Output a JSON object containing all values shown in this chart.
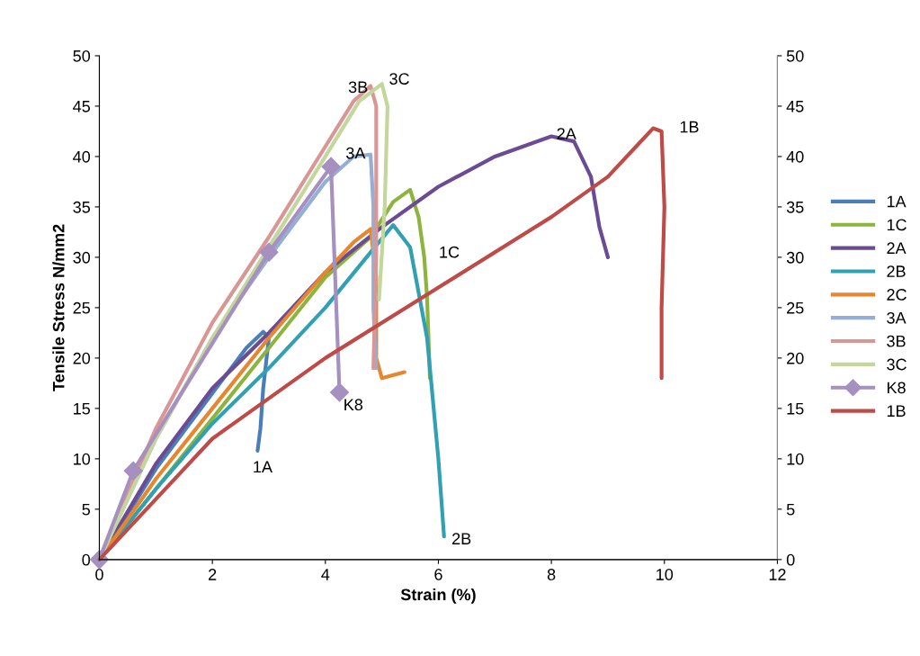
{
  "chart_data": {
    "type": "line",
    "xlabel": "Strain (%)",
    "ylabel": "Tensile Stress N/mm2",
    "xlim": [
      0,
      12
    ],
    "xticks": [
      0,
      2,
      4,
      6,
      8,
      10,
      12
    ],
    "ylim": [
      0,
      50
    ],
    "yticks": [
      0,
      5,
      10,
      15,
      20,
      25,
      30,
      35,
      40,
      45,
      50
    ],
    "y2lim": [
      0,
      50
    ],
    "y2ticks": [
      0,
      5,
      10,
      15,
      20,
      25,
      30,
      35,
      40,
      45,
      50
    ],
    "grid": false,
    "legend": "right",
    "marker": "none",
    "line_style": "solid",
    "series": [
      {
        "name": "1A",
        "color": "#4a7ebb",
        "x": [
          0,
          1,
          2,
          2.6,
          2.9,
          3.0,
          2.9,
          2.85,
          2.8
        ],
        "values": [
          0,
          9,
          16.5,
          21,
          22.6,
          22,
          17,
          13,
          10.8
        ]
      },
      {
        "name": "1C",
        "color": "#8db43e",
        "x": [
          0,
          1,
          2,
          3,
          4,
          4.8,
          5.2,
          5.5,
          5.65,
          5.75,
          5.8,
          5.85
        ],
        "values": [
          0,
          7,
          14,
          21,
          28,
          32,
          35.5,
          36.7,
          34,
          30,
          26,
          18
        ]
      },
      {
        "name": "2A",
        "color": "#6b4b92",
        "x": [
          0,
          1,
          2,
          3,
          4,
          5,
          6,
          7,
          8,
          8.4,
          8.7,
          8.85,
          9.0
        ],
        "values": [
          0,
          9.5,
          17,
          22.5,
          28.5,
          33,
          37,
          40,
          42,
          41.5,
          38,
          33,
          30
        ]
      },
      {
        "name": "2B",
        "color": "#31a0b2",
        "x": [
          0,
          1,
          2,
          3,
          4,
          4.8,
          5.2,
          5.5,
          5.8,
          6.0,
          6.1
        ],
        "values": [
          0,
          7,
          13.5,
          19,
          25,
          30.5,
          33.2,
          31,
          22,
          10,
          2.3
        ]
      },
      {
        "name": "2C",
        "color": "#e6862f",
        "x": [
          0,
          1,
          2,
          3,
          4,
          4.5,
          4.8,
          4.9,
          4.9,
          5.0,
          5.4
        ],
        "values": [
          0,
          8,
          15,
          22,
          28.5,
          31.5,
          32.8,
          28,
          20,
          18,
          18.6
        ]
      },
      {
        "name": "3A",
        "color": "#94aed6",
        "x": [
          0,
          1,
          2,
          3,
          4,
          4.5,
          4.8,
          4.85,
          4.85,
          4.9
        ],
        "values": [
          0,
          12,
          22,
          30,
          37.5,
          40,
          40.2,
          35,
          25,
          19
        ]
      },
      {
        "name": "3B",
        "color": "#d99694",
        "x": [
          0,
          1,
          2,
          3,
          4,
          4.5,
          4.8,
          4.9,
          4.9,
          4.85
        ],
        "values": [
          0,
          13,
          23.5,
          32,
          41,
          45.5,
          47,
          45,
          30,
          19
        ]
      },
      {
        "name": "3C",
        "color": "#c3d69b",
        "x": [
          0,
          1,
          2,
          3,
          4,
          4.6,
          5.0,
          5.1,
          5.05,
          4.95
        ],
        "values": [
          0,
          12,
          22,
          31,
          40,
          45.5,
          47.2,
          45,
          35,
          25.8
        ]
      },
      {
        "name": "K8",
        "color": "#a590c0",
        "marker": "diamond",
        "x": [
          0,
          0.6,
          3,
          4.1,
          4.25
        ],
        "values": [
          0,
          8.8,
          30.5,
          39,
          16.6
        ]
      },
      {
        "name": "1B",
        "color": "#be4b48",
        "x": [
          0,
          2,
          4,
          6,
          8,
          9,
          9.5,
          9.8,
          9.95,
          10.0,
          9.95,
          9.95
        ],
        "values": [
          0,
          12,
          20,
          27,
          34,
          38,
          41,
          42.8,
          42.5,
          35,
          25,
          18
        ]
      }
    ],
    "annotations": [
      {
        "text": "1A",
        "x": 2.8,
        "y": 10.8
      },
      {
        "text": "1C",
        "x": 5.75,
        "y": 30
      },
      {
        "text": "2A",
        "x": 8,
        "y": 42
      },
      {
        "text": "1B",
        "x": 9.8,
        "y": 42.8
      },
      {
        "text": "3B",
        "x": 4.8,
        "y": 47
      },
      {
        "text": "3C",
        "x": 5.0,
        "y": 47.2
      },
      {
        "text": "3A",
        "x": 4.8,
        "y": 40.2
      },
      {
        "text": "K8",
        "x": 4.25,
        "y": 16.6
      },
      {
        "text": "2B",
        "x": 6.1,
        "y": 2.3
      }
    ]
  }
}
